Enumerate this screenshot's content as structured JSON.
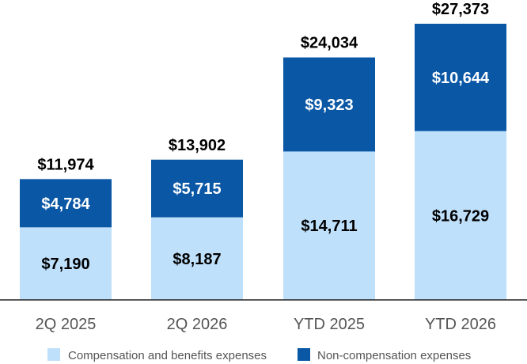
{
  "chart_data": {
    "type": "bar",
    "stacked": true,
    "categories": [
      "2Q 2025",
      "2Q 2026",
      "YTD 2025",
      "YTD 2026"
    ],
    "series": [
      {
        "name": "Compensation and benefits expenses",
        "color": "#bfe0fb",
        "values": [
          7190,
          8187,
          14711,
          16729
        ],
        "labels": [
          "$7,190",
          "$8,187",
          "$14,711",
          "$16,729"
        ]
      },
      {
        "name": "Non-compensation expenses",
        "color": "#0a57a5",
        "values": [
          4784,
          5715,
          9323,
          10644
        ],
        "labels": [
          "$4,784",
          "$5,715",
          "$9,323",
          "$10,644"
        ]
      }
    ],
    "totals": [
      11974,
      13902,
      24034,
      27373
    ],
    "total_labels": [
      "$11,974",
      "$13,902",
      "$24,034",
      "$27,373"
    ],
    "ylim": [
      0,
      27373
    ],
    "grid": false,
    "legend_position": "bottom"
  }
}
